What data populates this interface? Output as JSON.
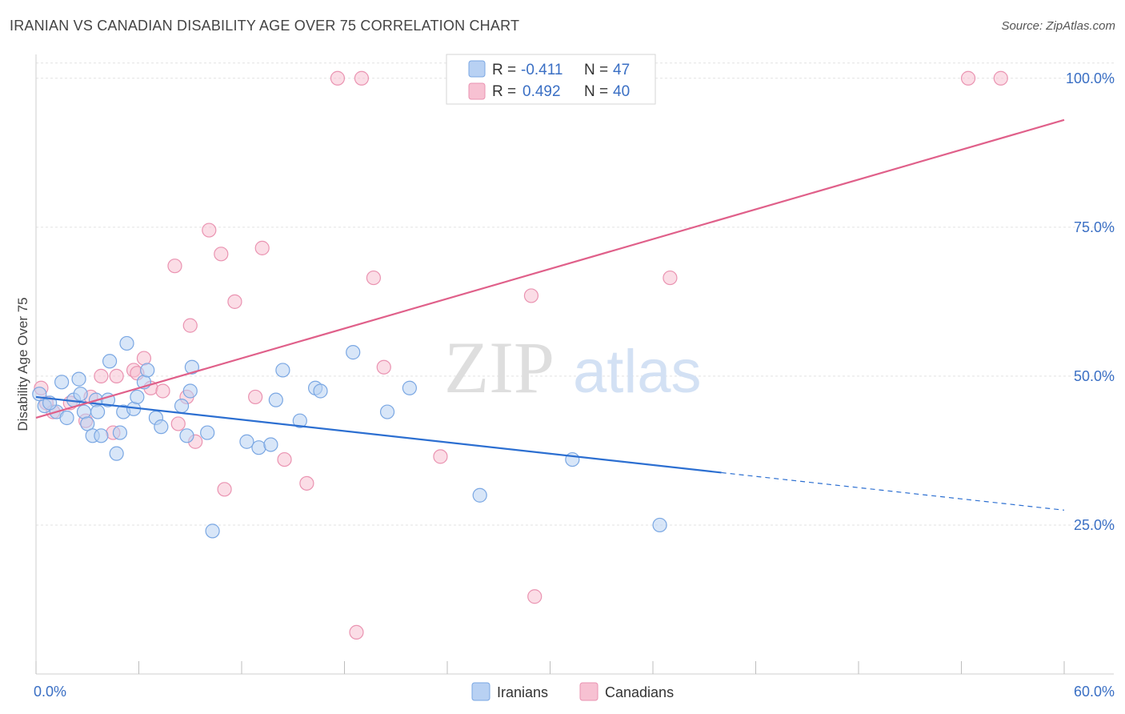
{
  "header": {
    "title": "IRANIAN VS CANADIAN DISABILITY AGE OVER 75 CORRELATION CHART",
    "source": "Source: ZipAtlas.com"
  },
  "watermark": {
    "zip": "ZIP",
    "atlas": "atlas"
  },
  "colors": {
    "iranians_fill": "#b8d1f3",
    "iranians_stroke": "#7aa7e3",
    "iranians_line": "#2c6fd1",
    "canadians_fill": "#f7c1d2",
    "canadians_stroke": "#ea93b1",
    "canadians_line": "#e0608a",
    "tick_text": "#3a6fc4",
    "grid": "#e2e2e2"
  },
  "legend": {
    "rows": [
      {
        "r_label": "R = ",
        "r_value": "-0.411",
        "n_label": "N = ",
        "n_value": "47"
      },
      {
        "r_label": "R = ",
        "r_value": "0.492",
        "n_label": "N = ",
        "n_value": "40"
      }
    ]
  },
  "chart_data": {
    "type": "scatter",
    "title": "IRANIAN VS CANADIAN DISABILITY AGE OVER 75 CORRELATION CHART",
    "xlabel": "",
    "ylabel": "Disability Age Over 75",
    "xlim": [
      0,
      60
    ],
    "ylim": [
      0,
      104
    ],
    "x_tick_labels": [
      "0.0%",
      "60.0%"
    ],
    "y_ticks": [
      25,
      50,
      75,
      100
    ],
    "y_tick_labels": [
      "25.0%",
      "50.0%",
      "75.0%",
      "100.0%"
    ],
    "grid": true,
    "legend_position": "top-center",
    "bottom_legend": [
      "Iranians",
      "Canadians"
    ],
    "series": [
      {
        "name": "Iranians",
        "r": -0.411,
        "n": 47,
        "trend": {
          "x0": 0,
          "y0": 46.5,
          "x1": 40,
          "y1": 33.8,
          "dash_to_x": 60,
          "dash_to_y": 27.5
        },
        "points": [
          [
            0.5,
            45
          ],
          [
            1.2,
            44
          ],
          [
            1.5,
            49
          ],
          [
            1.8,
            43
          ],
          [
            2.2,
            46
          ],
          [
            2.5,
            49.5
          ],
          [
            2.6,
            47
          ],
          [
            2.8,
            44
          ],
          [
            3.0,
            42
          ],
          [
            3.3,
            40
          ],
          [
            3.5,
            46
          ],
          [
            3.6,
            44
          ],
          [
            3.8,
            40
          ],
          [
            4.2,
            46
          ],
          [
            4.3,
            52.5
          ],
          [
            4.7,
            37
          ],
          [
            4.9,
            40.5
          ],
          [
            5.1,
            44
          ],
          [
            5.3,
            55.5
          ],
          [
            5.7,
            44.5
          ],
          [
            5.9,
            46.5
          ],
          [
            6.3,
            49
          ],
          [
            6.5,
            51
          ],
          [
            7.0,
            43
          ],
          [
            7.3,
            41.5
          ],
          [
            8.5,
            45
          ],
          [
            8.8,
            40
          ],
          [
            9.1,
            51.5
          ],
          [
            9.0,
            47.5
          ],
          [
            10.0,
            40.5
          ],
          [
            10.3,
            24
          ],
          [
            12.3,
            39
          ],
          [
            13.0,
            38
          ],
          [
            13.7,
            38.5
          ],
          [
            14.0,
            46
          ],
          [
            14.4,
            51
          ],
          [
            15.4,
            42.5
          ],
          [
            16.3,
            48
          ],
          [
            16.6,
            47.5
          ],
          [
            18.5,
            54
          ],
          [
            20.5,
            44
          ],
          [
            21.8,
            48
          ],
          [
            25.9,
            30
          ],
          [
            31.3,
            36
          ],
          [
            36.4,
            25
          ],
          [
            0.2,
            47
          ],
          [
            0.8,
            45.5
          ]
        ]
      },
      {
        "name": "Canadians",
        "r": 0.492,
        "n": 40,
        "trend": {
          "x0": 0,
          "y0": 43,
          "x1": 60,
          "y1": 93
        },
        "points": [
          [
            0.3,
            48
          ],
          [
            0.6,
            45.5
          ],
          [
            1.0,
            44
          ],
          [
            2.0,
            45.5
          ],
          [
            2.9,
            42.5
          ],
          [
            3.2,
            46.5
          ],
          [
            3.8,
            50
          ],
          [
            4.5,
            40.5
          ],
          [
            4.7,
            50
          ],
          [
            5.7,
            51
          ],
          [
            5.9,
            50.5
          ],
          [
            6.3,
            53
          ],
          [
            6.7,
            48
          ],
          [
            7.4,
            47.5
          ],
          [
            8.1,
            68.5
          ],
          [
            8.3,
            42
          ],
          [
            8.8,
            46.5
          ],
          [
            9.0,
            58.5
          ],
          [
            9.3,
            39
          ],
          [
            10.1,
            74.5
          ],
          [
            10.8,
            70.5
          ],
          [
            11.0,
            31
          ],
          [
            11.6,
            62.5
          ],
          [
            12.8,
            46.5
          ],
          [
            13.2,
            71.5
          ],
          [
            14.5,
            36
          ],
          [
            15.8,
            32
          ],
          [
            17.6,
            100
          ],
          [
            18.7,
            7
          ],
          [
            19.0,
            100
          ],
          [
            19.7,
            66.5
          ],
          [
            20.3,
            51.5
          ],
          [
            23.6,
            36.5
          ],
          [
            28.9,
            63.5
          ],
          [
            29.1,
            13
          ],
          [
            33.4,
            100
          ],
          [
            34.1,
            100
          ],
          [
            37.0,
            66.5
          ],
          [
            54.4,
            100
          ],
          [
            56.3,
            100
          ]
        ]
      }
    ]
  }
}
